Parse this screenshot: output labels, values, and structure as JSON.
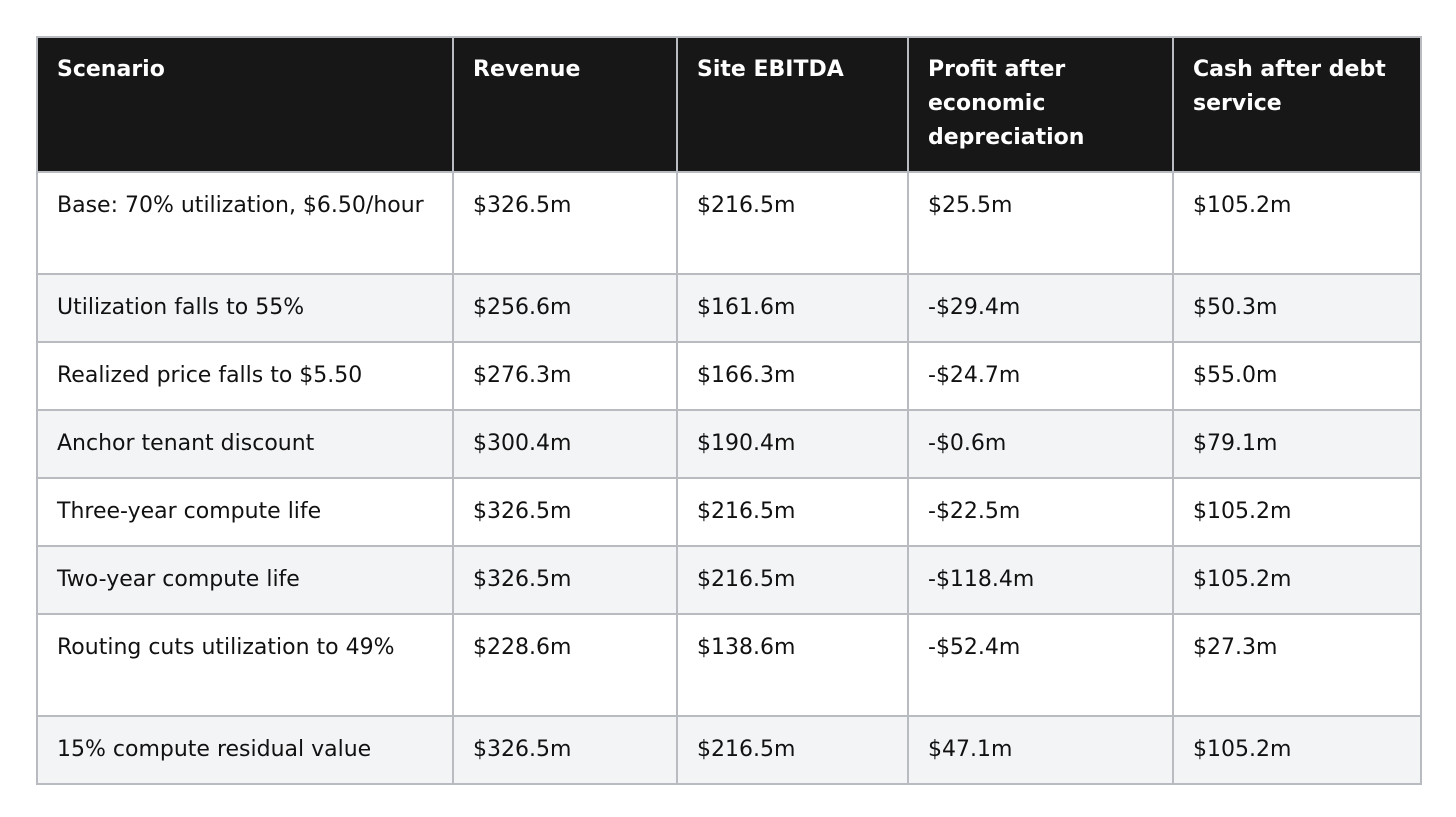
{
  "table": {
    "headers": [
      "Scenario",
      "Revenue",
      "Site EBITDA",
      "Profit after economic depreciation",
      "Cash after debt service"
    ],
    "rows": [
      [
        "Base: 70% utilization, $6.50/hour",
        "$326.5m",
        "$216.5m",
        "$25.5m",
        "$105.2m"
      ],
      [
        "Utilization falls to 55%",
        "$256.6m",
        "$161.6m",
        "-$29.4m",
        "$50.3m"
      ],
      [
        "Realized price falls to $5.50",
        "$276.3m",
        "$166.3m",
        "-$24.7m",
        "$55.0m"
      ],
      [
        "Anchor tenant discount",
        "$300.4m",
        "$190.4m",
        "-$0.6m",
        "$79.1m"
      ],
      [
        "Three-year compute life",
        "$326.5m",
        "$216.5m",
        "-$22.5m",
        "$105.2m"
      ],
      [
        "Two-year compute life",
        "$326.5m",
        "$216.5m",
        "-$118.4m",
        "$105.2m"
      ],
      [
        "Routing cuts utilization to 49%",
        "$228.6m",
        "$138.6m",
        "-$52.4m",
        "$27.3m"
      ],
      [
        "15% compute residual value",
        "$326.5m",
        "$216.5m",
        "$47.1m",
        "$105.2m"
      ]
    ]
  },
  "colors": {
    "header_bg": "#171717",
    "header_text": "#ffffff",
    "row_alt_bg": "#f3f4f6",
    "border": "#b8bbc0"
  }
}
